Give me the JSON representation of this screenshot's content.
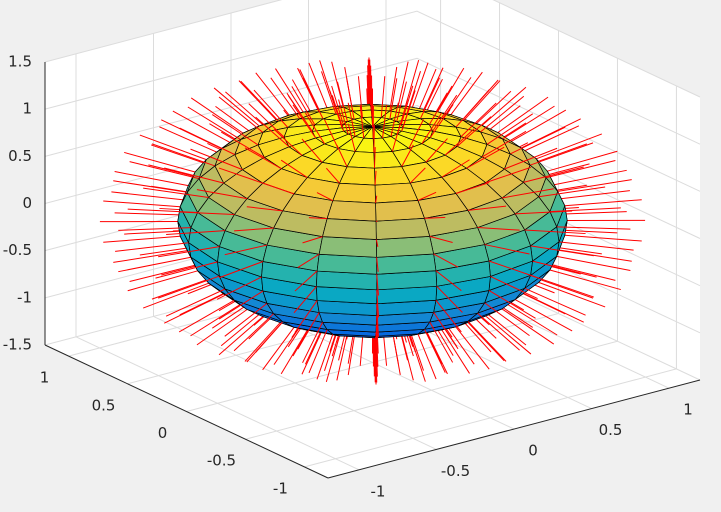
{
  "chart_data": {
    "type": "surface-normals",
    "radius": 1,
    "mesh": 20,
    "normal_length": 0.4,
    "surface_edge_color": "#000000",
    "normal_color": "#ff0000",
    "xlim": [
      -1.2,
      1.2
    ],
    "xticks": [
      -1,
      -0.5,
      0,
      0.5,
      1
    ],
    "ylim": [
      -1.2,
      1.2
    ],
    "yticks": [
      -1,
      -0.5,
      0,
      0.5,
      1
    ],
    "zlim": [
      -1.5,
      1.5
    ],
    "zticks": [
      -1.5,
      -1,
      -0.5,
      0,
      0.5,
      1,
      1.5
    ],
    "grid": true
  }
}
